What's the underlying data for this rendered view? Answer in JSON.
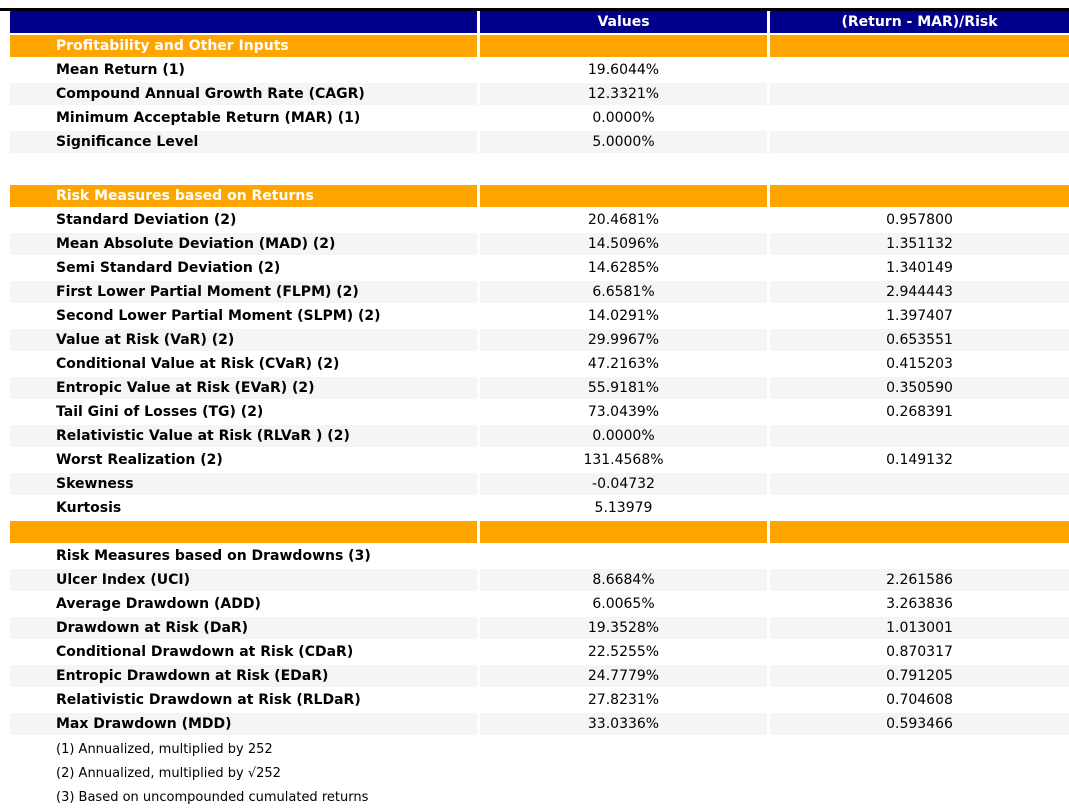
{
  "colors": {
    "header_bg": "#00008B",
    "header_text": "#ffffff",
    "section_bg": "#FFA500",
    "section_text": "#ffffff",
    "stripe_bg": "#F5F5F5",
    "top_rule": "#000000",
    "text": "#000000"
  },
  "chart_data": {
    "type": "table",
    "columns": [
      "",
      "Values",
      "(Return - MAR)/Risk"
    ],
    "rows": [
      {
        "type": "section",
        "label": "Profitability and Other Inputs"
      },
      {
        "type": "data",
        "label": "Mean Return (1)",
        "values": "19.6044%",
        "risk": ""
      },
      {
        "type": "data",
        "label": "Compound Annual Growth Rate (CAGR)",
        "values": "12.3321%",
        "risk": ""
      },
      {
        "type": "data",
        "label": "Minimum Acceptable Return (MAR) (1)",
        "values": "0.0000%",
        "risk": ""
      },
      {
        "type": "data",
        "label": "Significance Level",
        "values": "5.0000%",
        "risk": ""
      },
      {
        "type": "spacer"
      },
      {
        "type": "section",
        "label": "Risk Measures based on Returns"
      },
      {
        "type": "data",
        "label": "Standard Deviation (2)",
        "values": "20.4681%",
        "risk": "0.957800"
      },
      {
        "type": "data",
        "label": "Mean Absolute Deviation (MAD) (2)",
        "values": "14.5096%",
        "risk": "1.351132"
      },
      {
        "type": "data",
        "label": "Semi Standard Deviation (2)",
        "values": "14.6285%",
        "risk": "1.340149"
      },
      {
        "type": "data",
        "label": "First Lower Partial Moment (FLPM) (2)",
        "values": "6.6581%",
        "risk": "2.944443"
      },
      {
        "type": "data",
        "label": "Second Lower Partial Moment (SLPM) (2)",
        "values": "14.0291%",
        "risk": "1.397407"
      },
      {
        "type": "data",
        "label": "Value at Risk (VaR) (2)",
        "values": "29.9967%",
        "risk": "0.653551"
      },
      {
        "type": "data",
        "label": "Conditional Value at Risk (CVaR) (2)",
        "values": "47.2163%",
        "risk": "0.415203"
      },
      {
        "type": "data",
        "label": "Entropic Value at Risk (EVaR) (2)",
        "values": "55.9181%",
        "risk": "0.350590"
      },
      {
        "type": "data",
        "label": "Tail Gini of Losses (TG) (2)",
        "values": "73.0439%",
        "risk": "0.268391"
      },
      {
        "type": "data",
        "label": "Relativistic Value at Risk (RLVaR ) (2)",
        "values": "0.0000%",
        "risk": ""
      },
      {
        "type": "data",
        "label": "Worst Realization (2)",
        "values": "131.4568%",
        "risk": "0.149132"
      },
      {
        "type": "data",
        "label": "Skewness",
        "values": "-0.04732",
        "risk": ""
      },
      {
        "type": "data",
        "label": "Kurtosis",
        "values": "5.13979",
        "risk": ""
      },
      {
        "type": "section",
        "label": ""
      },
      {
        "type": "data",
        "label": "Risk Measures based on Drawdowns (3)",
        "values": "",
        "risk": ""
      },
      {
        "type": "data",
        "label": "Ulcer Index (UCI)",
        "values": "8.6684%",
        "risk": "2.261586"
      },
      {
        "type": "data",
        "label": "Average Drawdown (ADD)",
        "values": "6.0065%",
        "risk": "3.263836"
      },
      {
        "type": "data",
        "label": "Drawdown at Risk (DaR)",
        "values": "19.3528%",
        "risk": "1.013001"
      },
      {
        "type": "data",
        "label": "Conditional Drawdown at Risk (CDaR)",
        "values": "22.5255%",
        "risk": "0.870317"
      },
      {
        "type": "data",
        "label": "Entropic Drawdown at Risk (EDaR)",
        "values": "24.7779%",
        "risk": "0.791205"
      },
      {
        "type": "data",
        "label": "Relativistic Drawdown at Risk (RLDaR)",
        "values": "27.8231%",
        "risk": "0.704608"
      },
      {
        "type": "data",
        "label": "Max Drawdown (MDD)",
        "values": "33.0336%",
        "risk": "0.593466"
      }
    ],
    "footnotes": [
      "(1) Annualized, multiplied by 252",
      "(2) Annualized, multiplied by √252",
      "(3) Based on uncompounded cumulated returns"
    ]
  }
}
